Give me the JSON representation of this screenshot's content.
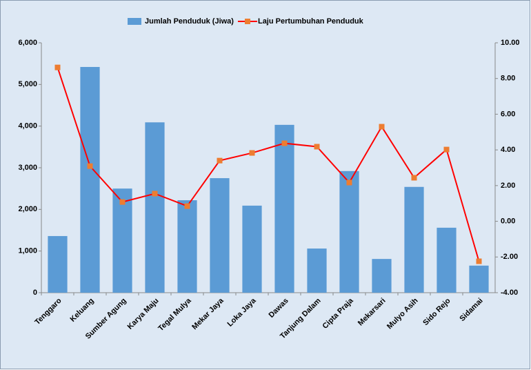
{
  "chart_data": {
    "type": "bar-line",
    "categories": [
      "Tenggaro",
      "Keluang",
      "Sumber Agung",
      "Karya Maju",
      "Tegal Mulya",
      "Mekar Jaya",
      "Loka Jaya",
      "Dawas",
      "Tanjung Dalam",
      "Cipta Praja",
      "Mekarsari",
      "Mulyo Asih",
      "Sido Rejo",
      "Sidamai"
    ],
    "series": [
      {
        "name": "Jumlah Penduduk (Jiwa)",
        "color": "#5b9bd5",
        "type": "bar",
        "values": [
          1360,
          5420,
          2500,
          4090,
          2220,
          2750,
          2090,
          4030,
          1060,
          2920,
          810,
          2540,
          1560,
          650
        ]
      },
      {
        "name": "Laju Pertumbuhan Penduduk",
        "color": "#ff0000",
        "marker_color": "#ed7d31",
        "type": "line",
        "axis": "y2",
        "values": [
          8.62,
          3.09,
          1.08,
          1.55,
          0.85,
          3.4,
          3.83,
          4.37,
          4.18,
          2.17,
          5.3,
          2.44,
          4.02,
          -2.24
        ]
      }
    ],
    "ylim": [
      0,
      6000
    ],
    "yticks": [
      0,
      {
        "value": 1000,
        "label": "1,000"
      },
      {
        "value": 2000,
        "label": "2,000"
      },
      {
        "value": 3000,
        "label": "3,000"
      },
      {
        "value": 4000,
        "label": "4,000"
      },
      {
        "value": 5000,
        "label": "5,000"
      },
      {
        "value": 6000,
        "label": "6,000"
      }
    ],
    "y2lim": [
      -4,
      10
    ],
    "y2ticks": [
      {
        "value": -4,
        "label": "-4.00"
      },
      {
        "value": -2,
        "label": "-2.00"
      },
      {
        "value": 0,
        "label": "0.00"
      },
      {
        "value": 2,
        "label": "2.00"
      },
      {
        "value": 4,
        "label": "4.00"
      },
      {
        "value": 6,
        "label": "6.00"
      },
      {
        "value": 8,
        "label": "8.00"
      },
      {
        "value": 10,
        "label": "10.00"
      }
    ],
    "legend": "top"
  }
}
